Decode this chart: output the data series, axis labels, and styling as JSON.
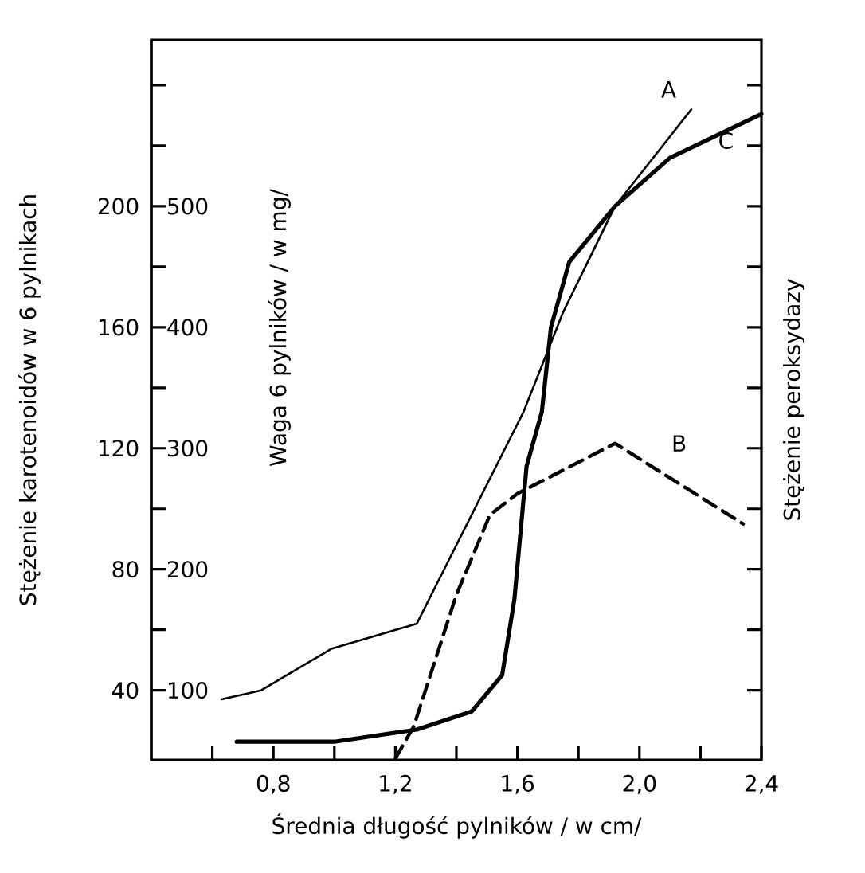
{
  "chart_data": {
    "type": "line",
    "xlabel": "Średnia długość pylników / w cm/",
    "ylabel": "Stężenie karotenoidów w 6 pylnikach",
    "y2label": "Waga 6 pylników / w mg/",
    "y3label": "Stężenie peroksydazy",
    "xlim": [
      0.4,
      2.4
    ],
    "xticks": [
      {
        "value": 0.6,
        "label": null
      },
      {
        "value": 0.8,
        "label": "0,8"
      },
      {
        "value": 1.0,
        "label": null
      },
      {
        "value": 1.2,
        "label": "1,2"
      },
      {
        "value": 1.4,
        "label": null
      },
      {
        "value": 1.6,
        "label": "1,6"
      },
      {
        "value": 1.8,
        "label": null
      },
      {
        "value": 2.0,
        "label": "2,0"
      },
      {
        "value": 2.2,
        "label": null
      },
      {
        "value": 2.4,
        "label": "2,4"
      }
    ],
    "ylim": [
      17,
      255
    ],
    "yticks": [
      40,
      {
        "value": 60,
        "label": null
      },
      80,
      {
        "value": 100,
        "label": null
      },
      120,
      {
        "value": 140,
        "label": null
      },
      160,
      {
        "value": 180,
        "label": null
      },
      200,
      {
        "value": 220,
        "label": null
      },
      {
        "value": 240,
        "label": null
      }
    ],
    "y2lim": [
      42.5,
      637.5
    ],
    "y2ticks": [
      100,
      200,
      300,
      400,
      500
    ],
    "marker": "none",
    "series": [
      {
        "color": "#000000",
        "line_style": "solid",
        "x": [
          0.63,
          0.76,
          0.99,
          1.27,
          1.62,
          1.75,
          1.92,
          2.17
        ],
        "values": [
          37,
          40,
          53.7,
          62,
          132,
          165,
          200,
          232
        ]
      },
      {
        "color": "#000000",
        "line_style": "dashed",
        "x": [
          1.2,
          1.26,
          1.4,
          1.51,
          1.6,
          1.92,
          2.34
        ],
        "values": [
          17.5,
          28,
          71.6,
          98,
          105,
          121.6,
          95
        ]
      },
      {
        "color": "#000000",
        "line_style": "solid",
        "x": [
          0.68,
          1.0,
          1.27,
          1.45,
          1.55,
          1.59,
          1.63,
          1.68,
          1.71,
          1.77,
          1.92,
          2.1,
          2.4
        ],
        "values": [
          23,
          23,
          27,
          33,
          45,
          70,
          114,
          132,
          160,
          181.6,
          200,
          216,
          230.5
        ]
      }
    ],
    "annotations": [
      "A",
      "B",
      "C"
    ]
  }
}
